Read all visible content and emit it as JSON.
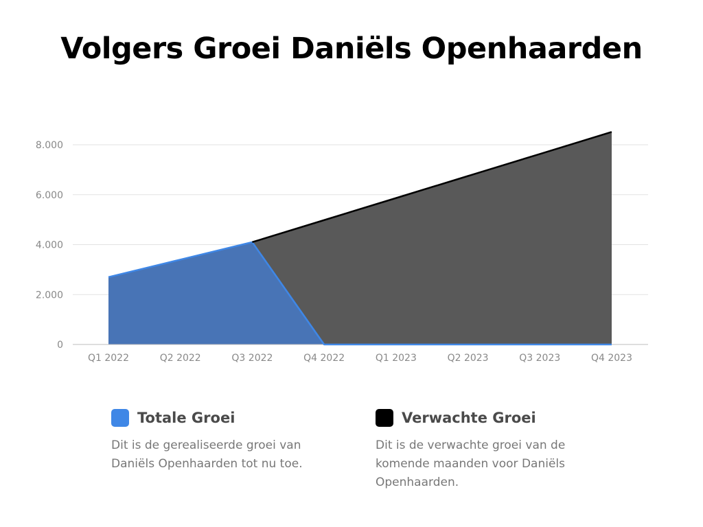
{
  "title": "Volgers Groei Daniëls Openhaarden",
  "colors": {
    "actual_fill": "#4874B6",
    "actual_line": "#3F87E6",
    "actual_swatch": "#3F87E6",
    "expected_fill": "#595959",
    "expected_line": "#000000",
    "expected_swatch": "#000000",
    "grid": "#E2E2E2",
    "axis": "#BDBDBD"
  },
  "chart_data": {
    "type": "area",
    "categories": [
      "Q1 2022",
      "Q2 2022",
      "Q3 2022",
      "Q4 2022",
      "Q1 2023",
      "Q2 2023",
      "Q3 2023",
      "Q4 2023"
    ],
    "series": [
      {
        "name": "Verwachte Groei",
        "values": [
          null,
          null,
          4100,
          4983,
          5866,
          6749,
          7632,
          8515
        ]
      },
      {
        "name": "Totale Groei",
        "values": [
          2700,
          3400,
          4100,
          0,
          0,
          0,
          0,
          0
        ]
      }
    ],
    "ylim": [
      0,
      8000
    ],
    "yticks": [
      0,
      2000,
      4000,
      6000,
      8000
    ],
    "ytick_labels": [
      "0",
      "2.000",
      "4.000",
      "6.000",
      "8.000"
    ],
    "grid": true
  },
  "legend": [
    {
      "name": "Totale Groei",
      "description": "Dit is de gerealiseerde groei van Daniëls Openhaarden tot nu toe."
    },
    {
      "name": "Verwachte Groei",
      "description": "Dit is de verwachte groei van de komende maanden voor Daniëls Openhaarden."
    }
  ]
}
